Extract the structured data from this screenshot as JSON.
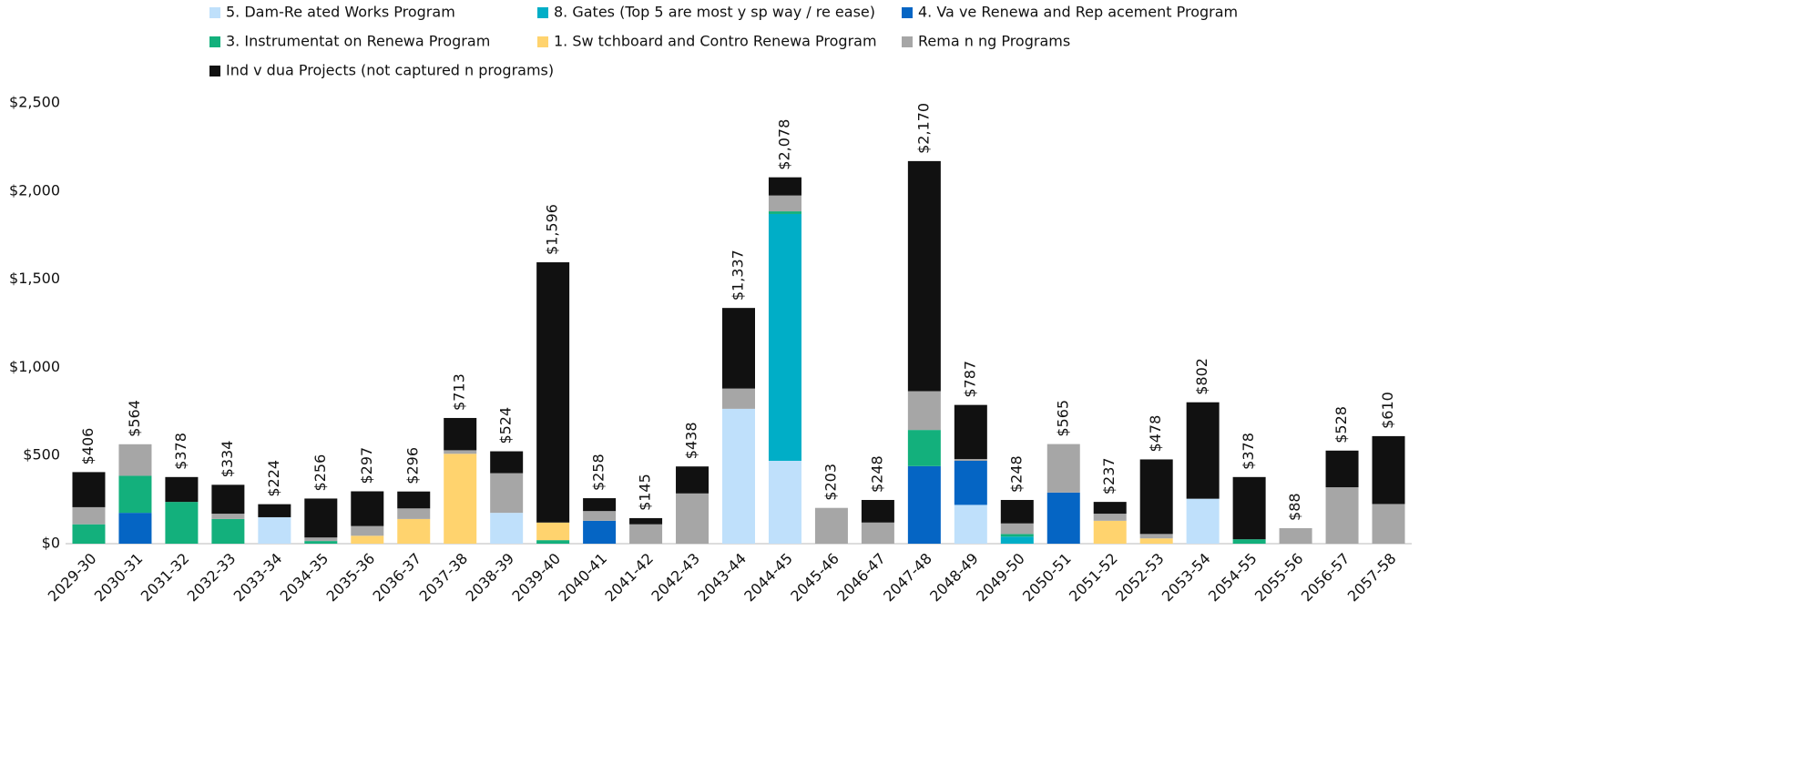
{
  "chart_data": {
    "type": "stacked_bar",
    "categories": [
      "2029-30",
      "2030-31",
      "2031-32",
      "2032-33",
      "2033-34",
      "2034-35",
      "2035-36",
      "2036-37",
      "2037-38",
      "2038-39",
      "2039-40",
      "2040-41",
      "2041-42",
      "2042-43",
      "2043-44",
      "2044-45",
      "2045-46",
      "2046-47",
      "2047-48",
      "2048-49",
      "2049-50",
      "2050-51",
      "2051-52",
      "2052-53",
      "2053-54",
      "2054-55",
      "2055-56",
      "2056-57",
      "2057-58"
    ],
    "series": [
      {
        "name": "5. Dam-Re ated Works Program",
        "color": "#bfe0fb",
        "values": [
          0,
          0,
          0,
          0,
          150,
          0,
          0,
          0,
          0,
          175,
          0,
          0,
          0,
          0,
          765,
          470,
          0,
          0,
          0,
          220,
          0,
          0,
          0,
          0,
          255,
          0,
          0,
          0,
          0
        ]
      },
      {
        "name": "8. Gates (Top 5 are most y sp  way / re ease)",
        "color": "#00aec7",
        "values": [
          0,
          0,
          0,
          0,
          0,
          0,
          0,
          0,
          0,
          0,
          0,
          0,
          0,
          0,
          0,
          1400,
          0,
          0,
          0,
          0,
          40,
          0,
          0,
          0,
          0,
          0,
          0,
          0,
          0
        ]
      },
      {
        "name": "4. Va ve Renewa  and Rep acement Program",
        "color": "#0565c4",
        "values": [
          0,
          175,
          0,
          0,
          0,
          0,
          0,
          0,
          0,
          0,
          0,
          130,
          0,
          0,
          0,
          0,
          0,
          0,
          440,
          250,
          0,
          290,
          0,
          0,
          0,
          0,
          0,
          0,
          0
        ]
      },
      {
        "name": "3. Instrumentat on Renewa  Program",
        "color": "#13b07c",
        "values": [
          110,
          210,
          237,
          140,
          0,
          15,
          0,
          0,
          0,
          0,
          20,
          0,
          0,
          0,
          0,
          15,
          0,
          0,
          205,
          0,
          15,
          0,
          0,
          0,
          0,
          25,
          0,
          0,
          0
        ]
      },
      {
        "name": "1. Sw tchboard and Contro  Renewa  Program",
        "color": "#ffd36e",
        "values": [
          0,
          0,
          0,
          0,
          0,
          0,
          45,
          140,
          510,
          0,
          100,
          0,
          0,
          0,
          0,
          0,
          0,
          0,
          0,
          0,
          0,
          0,
          130,
          30,
          0,
          0,
          0,
          0,
          0
        ]
      },
      {
        "name": "Rema n ng Programs",
        "color": "#a6a6a6",
        "values": [
          97,
          179,
          0,
          30,
          0,
          20,
          55,
          60,
          20,
          225,
          0,
          55,
          110,
          285,
          115,
          90,
          203,
          120,
          220,
          10,
          60,
          275,
          40,
          25,
          0,
          0,
          88,
          320,
          225
        ]
      },
      {
        "name": "Ind v dua  Projects (not captured  n programs)",
        "color": "#111111",
        "values": [
          199,
          0,
          141,
          164,
          74,
          221,
          197,
          96,
          183,
          124,
          1476,
          73,
          35,
          153,
          457,
          103,
          0,
          128,
          1305,
          307,
          133,
          0,
          67,
          423,
          547,
          353,
          0,
          208,
          385
        ]
      }
    ],
    "totals": [
      406,
      564,
      378,
      334,
      224,
      256,
      297,
      296,
      713,
      524,
      1596,
      258,
      145,
      438,
      1337,
      2078,
      203,
      248,
      2170,
      787,
      248,
      565,
      237,
      478,
      802,
      378,
      88,
      528,
      610
    ],
    "total_labels": [
      "$406",
      "$564",
      "$378",
      "$334",
      "$224",
      "$256",
      "$297",
      "$296",
      "$713",
      "$524",
      "$1,596",
      "$258",
      "$145",
      "$438",
      "$1,337",
      "$2,078",
      "$203",
      "$248",
      "$2,170",
      "$787",
      "$248",
      "$565",
      "$237",
      "$478",
      "$802",
      "$378",
      "$88",
      "$528",
      "$610"
    ],
    "ylim": [
      0,
      2500
    ],
    "yticks": [
      {
        "value": 0,
        "label": "$0"
      },
      {
        "value": 500,
        "label": "$500"
      },
      {
        "value": 1000,
        "label": "$1,000"
      },
      {
        "value": 1500,
        "label": "$1,500"
      },
      {
        "value": 2000,
        "label": "$2,000"
      },
      {
        "value": 2500,
        "label": "$2,500"
      }
    ]
  }
}
